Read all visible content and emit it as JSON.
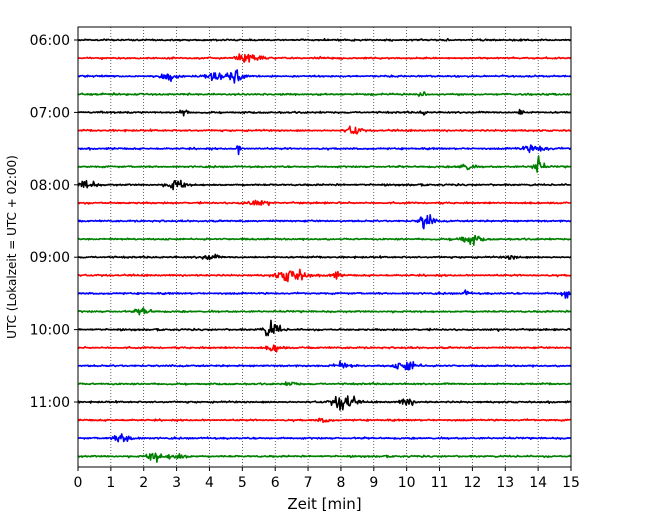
{
  "chart_data": {
    "type": "line",
    "xlabel": "Zeit  [min]",
    "ylabel": "UTC (Lokalzeit = UTC + 02:00)",
    "xlim": [
      0,
      15
    ],
    "x_ticks": [
      0,
      1,
      2,
      3,
      4,
      5,
      6,
      7,
      8,
      9,
      10,
      11,
      12,
      13,
      14,
      15
    ],
    "y_tick_labels": [
      "06:00",
      "07:00",
      "08:00",
      "09:00",
      "10:00",
      "11:00"
    ],
    "y_tick_row_index": [
      0,
      4,
      8,
      12,
      16,
      20
    ],
    "trace_count": 24,
    "trace_interval_min": 15,
    "trace_colors": [
      "#000000",
      "#ff0000",
      "#0000ff",
      "#008000"
    ],
    "grid": "vertical dotted at each minute",
    "events": [
      {
        "trace": 1,
        "t": 5.2,
        "amp": 0.35,
        "dur": 0.35
      },
      {
        "trace": 2,
        "t": 4.8,
        "amp": 0.6,
        "dur": 0.2
      },
      {
        "trace": 2,
        "t": 2.8,
        "amp": 0.3,
        "dur": 0.25
      },
      {
        "trace": 2,
        "t": 4.2,
        "amp": 0.3,
        "dur": 0.3
      },
      {
        "trace": 3,
        "t": 10.5,
        "amp": 0.25,
        "dur": 0.1
      },
      {
        "trace": 4,
        "t": 13.5,
        "amp": 0.35,
        "dur": 0.08
      },
      {
        "trace": 4,
        "t": 10.5,
        "amp": 0.2,
        "dur": 0.08
      },
      {
        "trace": 4,
        "t": 3.2,
        "amp": 0.2,
        "dur": 0.1
      },
      {
        "trace": 5,
        "t": 8.4,
        "amp": 0.35,
        "dur": 0.2
      },
      {
        "trace": 6,
        "t": 4.9,
        "amp": 0.55,
        "dur": 0.05
      },
      {
        "trace": 6,
        "t": 13.9,
        "amp": 0.25,
        "dur": 0.4
      },
      {
        "trace": 7,
        "t": 14.0,
        "amp": 0.7,
        "dur": 0.15
      },
      {
        "trace": 7,
        "t": 11.8,
        "amp": 0.3,
        "dur": 0.2
      },
      {
        "trace": 8,
        "t": 0.3,
        "amp": 0.45,
        "dur": 0.2
      },
      {
        "trace": 8,
        "t": 3.0,
        "amp": 0.45,
        "dur": 0.25
      },
      {
        "trace": 9,
        "t": 5.4,
        "amp": 0.2,
        "dur": 0.3
      },
      {
        "trace": 10,
        "t": 10.6,
        "amp": 0.75,
        "dur": 0.18
      },
      {
        "trace": 11,
        "t": 11.9,
        "amp": 0.35,
        "dur": 0.35
      },
      {
        "trace": 12,
        "t": 4.0,
        "amp": 0.2,
        "dur": 0.25
      },
      {
        "trace": 12,
        "t": 13.2,
        "amp": 0.15,
        "dur": 0.2
      },
      {
        "trace": 13,
        "t": 6.5,
        "amp": 0.55,
        "dur": 0.4
      },
      {
        "trace": 13,
        "t": 7.8,
        "amp": 0.3,
        "dur": 0.15
      },
      {
        "trace": 14,
        "t": 14.8,
        "amp": 0.4,
        "dur": 0.12
      },
      {
        "trace": 14,
        "t": 11.8,
        "amp": 0.2,
        "dur": 0.1
      },
      {
        "trace": 15,
        "t": 2.0,
        "amp": 0.3,
        "dur": 0.2
      },
      {
        "trace": 16,
        "t": 5.9,
        "amp": 0.6,
        "dur": 0.25
      },
      {
        "trace": 17,
        "t": 6.0,
        "amp": 0.35,
        "dur": 0.2
      },
      {
        "trace": 18,
        "t": 10.0,
        "amp": 0.45,
        "dur": 0.3
      },
      {
        "trace": 18,
        "t": 8.0,
        "amp": 0.2,
        "dur": 0.3
      },
      {
        "trace": 19,
        "t": 6.5,
        "amp": 0.15,
        "dur": 0.2
      },
      {
        "trace": 20,
        "t": 8.1,
        "amp": 0.75,
        "dur": 0.3
      },
      {
        "trace": 20,
        "t": 10.0,
        "amp": 0.3,
        "dur": 0.2
      },
      {
        "trace": 21,
        "t": 7.5,
        "amp": 0.15,
        "dur": 0.2
      },
      {
        "trace": 22,
        "t": 1.4,
        "amp": 0.35,
        "dur": 0.3
      },
      {
        "trace": 23,
        "t": 2.3,
        "amp": 0.4,
        "dur": 0.2
      },
      {
        "trace": 23,
        "t": 3.0,
        "amp": 0.25,
        "dur": 0.3
      }
    ]
  }
}
